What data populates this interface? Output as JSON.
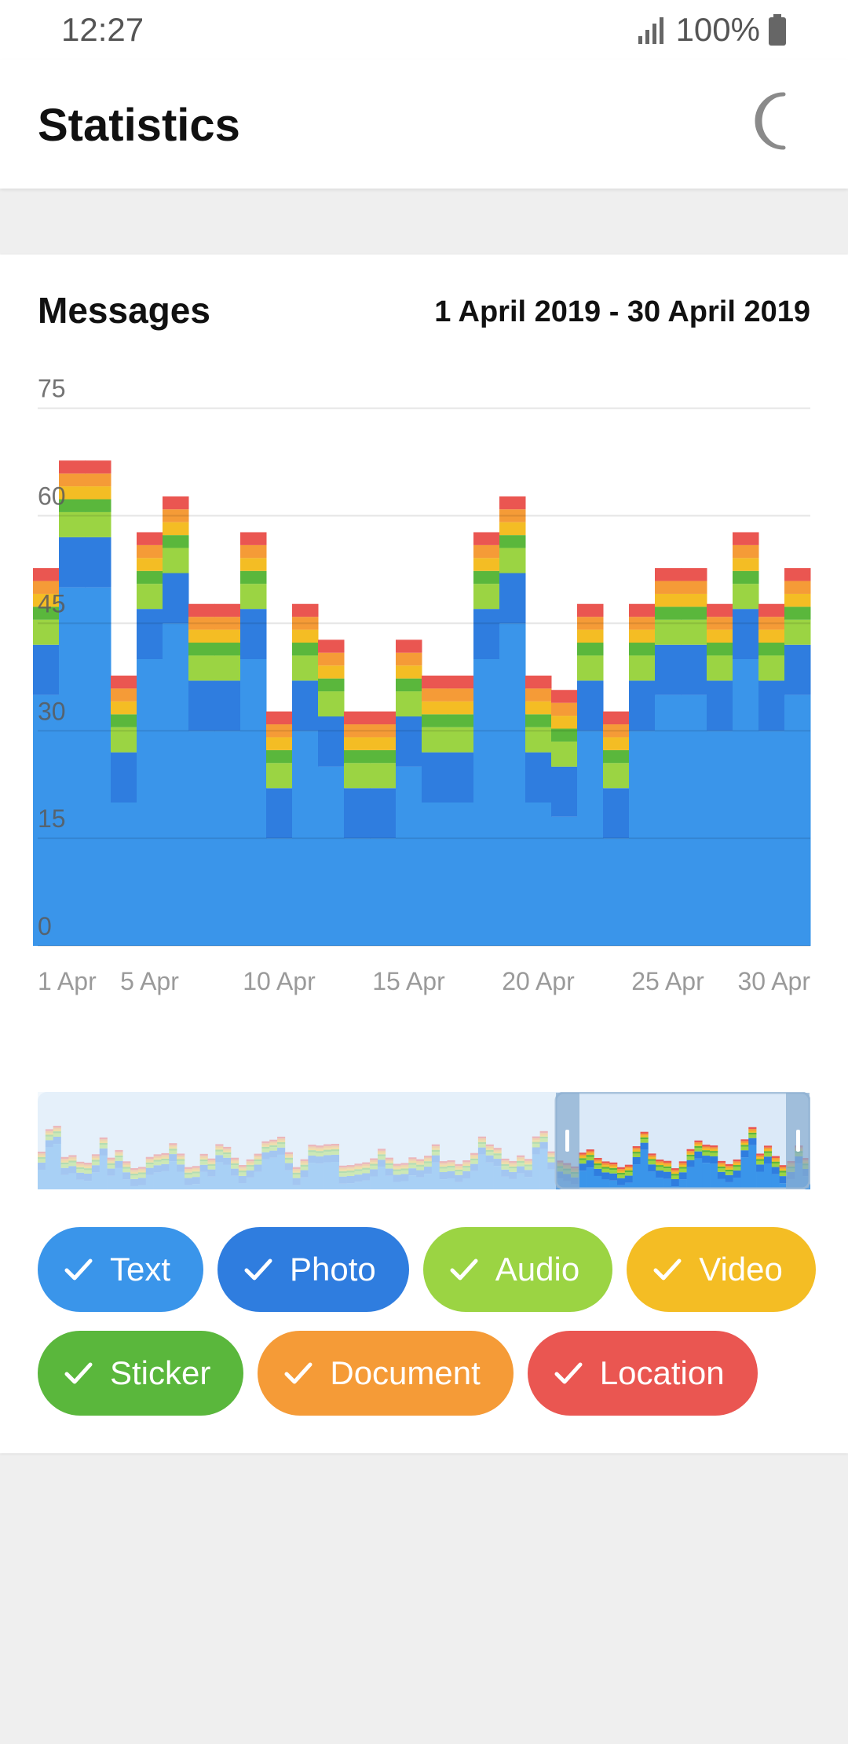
{
  "status": {
    "time": "12:27",
    "battery": "100%"
  },
  "app_bar": {
    "title": "Statistics"
  },
  "card": {
    "title": "Messages",
    "date_range": "1 April 2019 - 30 April 2019"
  },
  "colors": {
    "Text": "#3a95ea",
    "Photo": "#2f7ddf",
    "Audio": "#9bd443",
    "Video": "#f4bd24",
    "Sticker": "#5ab73c",
    "Document": "#f59b37",
    "Location": "#ea5651"
  },
  "chips": [
    {
      "label": "Text",
      "color": "#3a95ea"
    },
    {
      "label": "Photo",
      "color": "#2f7ddf"
    },
    {
      "label": "Audio",
      "color": "#9bd443"
    },
    {
      "label": "Video",
      "color": "#f4bd24"
    },
    {
      "label": "Sticker",
      "color": "#5ab73c"
    },
    {
      "label": "Document",
      "color": "#f59b37"
    },
    {
      "label": "Location",
      "color": "#ea5651"
    }
  ],
  "chart_data": {
    "type": "bar",
    "stacked": true,
    "categories": [
      "1 Apr",
      "2 Apr",
      "3 Apr",
      "4 Apr",
      "5 Apr",
      "6 Apr",
      "7 Apr",
      "8 Apr",
      "9 Apr",
      "10 Apr",
      "11 Apr",
      "12 Apr",
      "13 Apr",
      "14 Apr",
      "15 Apr",
      "16 Apr",
      "17 Apr",
      "18 Apr",
      "19 Apr",
      "20 Apr",
      "21 Apr",
      "22 Apr",
      "23 Apr",
      "24 Apr",
      "25 Apr",
      "26 Apr",
      "27 Apr",
      "28 Apr",
      "29 Apr",
      "30 Apr"
    ],
    "x_tick_labels": [
      "1 Apr",
      "5 Apr",
      "10 Apr",
      "15 Apr",
      "20 Apr",
      "25 Apr",
      "30 Apr"
    ],
    "y_ticks": [
      0,
      15,
      30,
      45,
      60,
      75
    ],
    "ylim": [
      0,
      80
    ],
    "series": [
      {
        "name": "Text",
        "values": [
          35,
          50,
          50,
          20,
          40,
          45,
          30,
          30,
          40,
          15,
          30,
          25,
          15,
          15,
          25,
          20,
          20,
          40,
          45,
          20,
          18,
          30,
          15,
          30,
          35,
          35,
          30,
          40,
          30,
          35
        ]
      },
      {
        "name": "Photo",
        "values": [
          7,
          7,
          7,
          7,
          7,
          7,
          7,
          7,
          7,
          7,
          7,
          7,
          7,
          7,
          7,
          7,
          7,
          7,
          7,
          7,
          7,
          7,
          7,
          7,
          7,
          7,
          7,
          7,
          7,
          7
        ]
      },
      {
        "name": "Audio",
        "values": [
          3.5,
          3.5,
          3.5,
          3.5,
          3.5,
          3.5,
          3.5,
          3.5,
          3.5,
          3.5,
          3.5,
          3.5,
          3.5,
          3.5,
          3.5,
          3.5,
          3.5,
          3.5,
          3.5,
          3.5,
          3.5,
          3.5,
          3.5,
          3.5,
          3.5,
          3.5,
          3.5,
          3.5,
          3.5,
          3.5
        ]
      },
      {
        "name": "Sticker",
        "values": [
          1.8,
          1.8,
          1.8,
          1.8,
          1.8,
          1.8,
          1.8,
          1.8,
          1.8,
          1.8,
          1.8,
          1.8,
          1.8,
          1.8,
          1.8,
          1.8,
          1.8,
          1.8,
          1.8,
          1.8,
          1.8,
          1.8,
          1.8,
          1.8,
          1.8,
          1.8,
          1.8,
          1.8,
          1.8,
          1.8
        ]
      },
      {
        "name": "Video",
        "values": [
          1.8,
          1.8,
          1.8,
          1.8,
          1.8,
          1.8,
          1.8,
          1.8,
          1.8,
          1.8,
          1.8,
          1.8,
          1.8,
          1.8,
          1.8,
          1.8,
          1.8,
          1.8,
          1.8,
          1.8,
          1.8,
          1.8,
          1.8,
          1.8,
          1.8,
          1.8,
          1.8,
          1.8,
          1.8,
          1.8
        ]
      },
      {
        "name": "Document",
        "values": [
          1.8,
          1.8,
          1.8,
          1.8,
          1.8,
          1.8,
          1.8,
          1.8,
          1.8,
          1.8,
          1.8,
          1.8,
          1.8,
          1.8,
          1.8,
          1.8,
          1.8,
          1.8,
          1.8,
          1.8,
          1.8,
          1.8,
          1.8,
          1.8,
          1.8,
          1.8,
          1.8,
          1.8,
          1.8,
          1.8
        ]
      },
      {
        "name": "Location",
        "values": [
          1.8,
          1.8,
          1.8,
          1.8,
          1.8,
          1.8,
          1.8,
          1.8,
          1.8,
          1.8,
          1.8,
          1.8,
          1.8,
          1.8,
          1.8,
          1.8,
          1.8,
          1.8,
          1.8,
          1.8,
          1.8,
          1.8,
          1.8,
          1.8,
          1.8,
          1.8,
          1.8,
          1.8,
          1.8,
          1.8
        ]
      }
    ],
    "grid": true,
    "legend_placement": "bottom"
  },
  "navigator": {
    "selected_range": [
      "1 Apr",
      "30 Apr"
    ]
  }
}
